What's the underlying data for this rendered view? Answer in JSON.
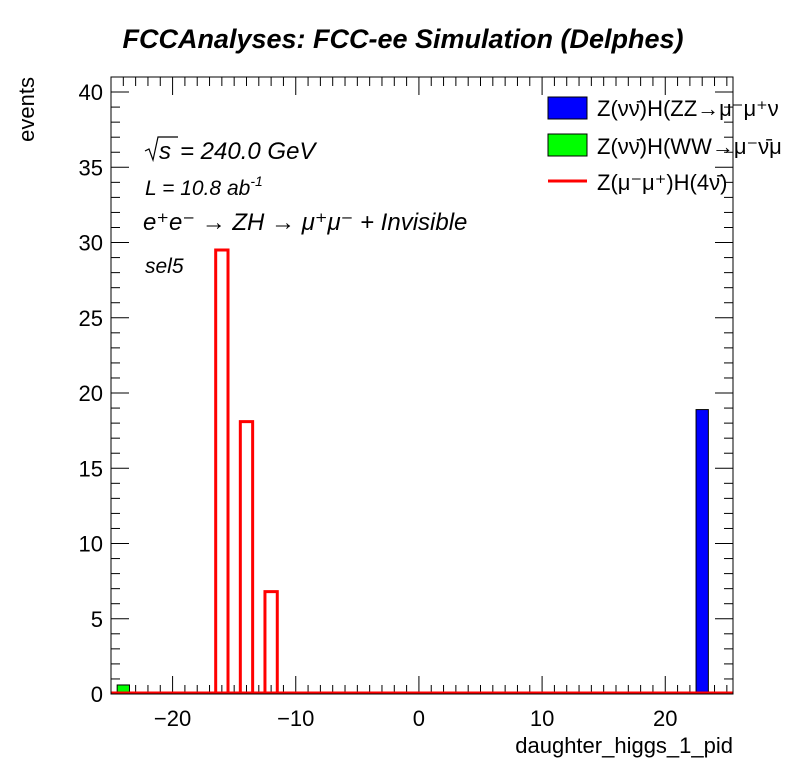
{
  "chart_data": {
    "type": "bar",
    "title": "FCCAnalyses: FCC-ee Simulation (Delphes)",
    "xlabel": "daughter_higgs_1_pid",
    "ylabel": "events",
    "xlim": [
      -25,
      25.5
    ],
    "ylim": [
      0,
      41
    ],
    "xticks": [
      -20,
      -10,
      0,
      10,
      20
    ],
    "yticks": [
      0,
      5,
      10,
      15,
      20,
      25,
      30,
      35,
      40
    ],
    "grid": false,
    "legend_position": "top-right",
    "annotations": {
      "sqrt_s": "s",
      "energy": "= 240.0 GeV",
      "lumi_prefix": "L = 10.8 ab",
      "lumi_exp": "-1",
      "process": "e⁺e⁻ → ZH → μ⁺μ⁻ + Invisible",
      "selection": "sel5"
    },
    "series": [
      {
        "name": "Z(νν̄)H(ZZ→μ⁻μ⁺ν",
        "style": "filled",
        "color": "#0000ff",
        "bins": [
          {
            "x0": 22.5,
            "x1": 23.5,
            "y": 18.9
          }
        ]
      },
      {
        "name": "Z(νν̄)H(WW→μ⁻ν̄μ",
        "style": "filled",
        "color": "#00ff00",
        "bins": [
          {
            "x0": -24.5,
            "x1": -23.5,
            "y": 0.6
          }
        ]
      },
      {
        "name": "Z(μ⁻μ⁺)H(4ν̄)",
        "style": "line",
        "color": "#ff0000",
        "bins": [
          {
            "x0": -16.5,
            "x1": -15.5,
            "y": 29.5
          },
          {
            "x0": -14.5,
            "x1": -13.5,
            "y": 18.1
          },
          {
            "x0": -12.5,
            "x1": -11.5,
            "y": 6.8
          }
        ]
      }
    ]
  }
}
